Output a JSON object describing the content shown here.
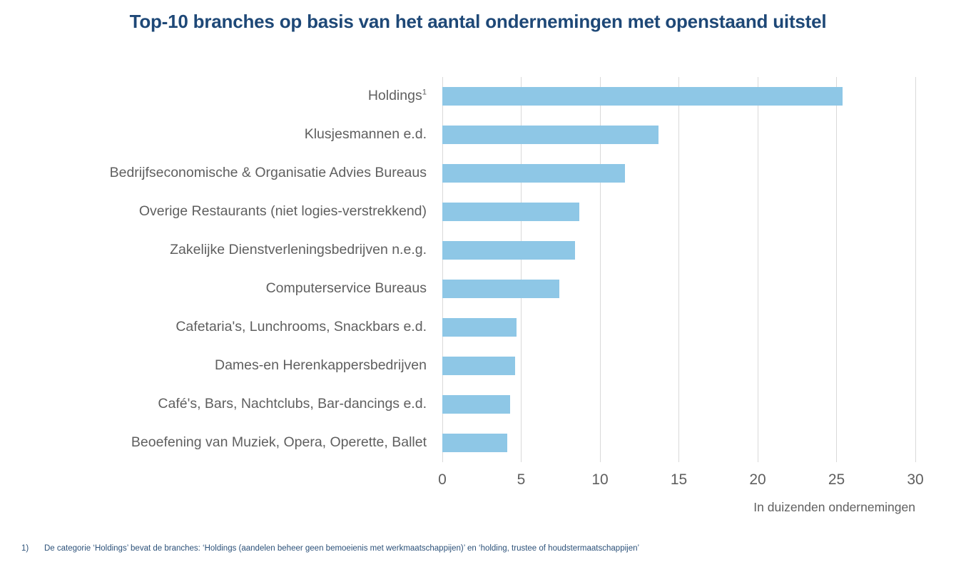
{
  "chart_data": {
    "type": "bar",
    "orientation": "horizontal",
    "title": "Top-10 branches op basis van het aantal ondernemingen met openstaand uitstel",
    "categories": [
      "Holdings",
      "Klusjesmannen e.d.",
      "Bedrijfseconomische & Organisatie Advies Bureaus",
      "Overige Restaurants (niet logies-verstrekkend)",
      "Zakelijke Dienstverleningsbedrijven n.e.g.",
      "Computerservice Bureaus",
      "Cafetaria's, Lunchrooms, Snackbars e.d.",
      "Dames-en Herenkappersbedrijven",
      "Café's, Bars, Nachtclubs, Bar-dancings e.d.",
      "Beoefening van Muziek, Opera, Operette, Ballet"
    ],
    "category_superscripts": [
      "1",
      "",
      "",
      "",
      "",
      "",
      "",
      "",
      "",
      ""
    ],
    "values": [
      25.4,
      13.7,
      11.6,
      8.7,
      8.4,
      7.4,
      4.7,
      4.6,
      4.3,
      4.1
    ],
    "xlabel": "In duizenden ondernemingen",
    "ylabel": "",
    "xlim": [
      0,
      30
    ],
    "xticks": [
      0,
      5,
      10,
      15,
      20,
      25,
      30
    ],
    "grid": "vertical-only",
    "legend": "none"
  },
  "footnote": {
    "marker": "1)",
    "text": "De categorie ‘Holdings’ bevat de branches: ‘Holdings (aandelen beheer geen bemoeienis met werkmaatschappijen)’ en ‘holding, trustee of houdstermaatschappijen’"
  },
  "colors": {
    "title_color": "#1e4877",
    "bar_color": "#8ec7e6",
    "grid_color": "#d9d9d9",
    "axis_text_color": "#5f5f5f",
    "footnote_color": "#2c5179"
  }
}
